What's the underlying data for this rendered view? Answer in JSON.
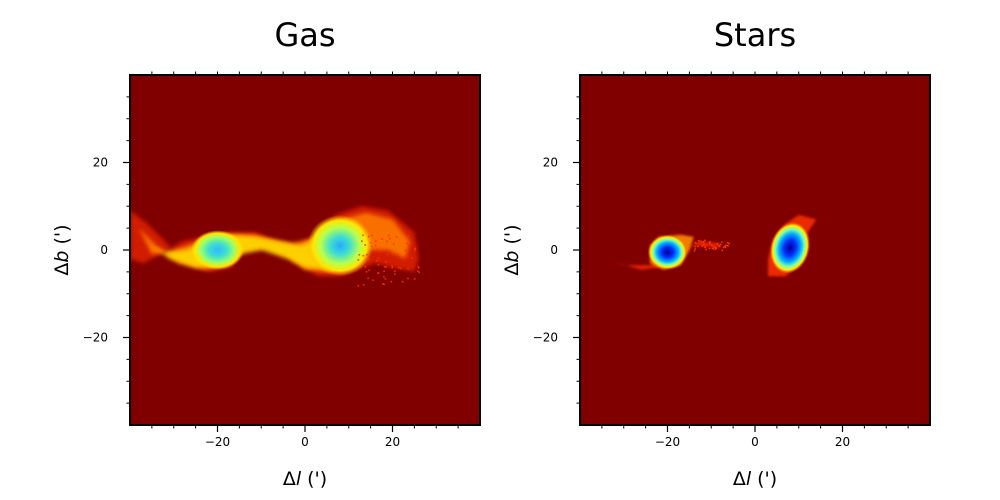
{
  "chart_data": [
    {
      "type": "heatmap",
      "title": "Gas",
      "xlabel_sym": "Δl",
      "xlabel_unit": " (')",
      "ylabel_sym": "Δb",
      "ylabel_unit": " (')",
      "xlim": [
        -40,
        40
      ],
      "ylim": [
        -40,
        40
      ],
      "xticks": [
        -20,
        0,
        20
      ],
      "yticks": [
        20,
        0,
        -20
      ],
      "xtick_labels": [
        "−20",
        "0",
        "20"
      ],
      "ytick_labels": [
        "20",
        "0",
        "−20"
      ],
      "colormap": "jet",
      "background_color": "#800000",
      "features": [
        {
          "kind": "spiral-galaxy",
          "center": [
            -20,
            0
          ],
          "radius": 5
        },
        {
          "kind": "spiral-galaxy",
          "center": [
            8,
            1
          ],
          "radius": 8
        },
        {
          "kind": "tidal-bridge",
          "from": [
            -15,
            2
          ],
          "to": [
            2,
            -3
          ]
        },
        {
          "kind": "tidal-tail",
          "from": [
            -20,
            -4
          ],
          "to": [
            -40,
            8
          ]
        },
        {
          "kind": "tidal-tail",
          "from": [
            12,
            8
          ],
          "to": [
            26,
            -4
          ]
        }
      ]
    },
    {
      "type": "heatmap",
      "title": "Stars",
      "xlabel_sym": "Δl",
      "xlabel_unit": " (')",
      "ylabel_sym": "Δb",
      "ylabel_unit": " (')",
      "xlim": [
        -40,
        40
      ],
      "ylim": [
        -40,
        40
      ],
      "xticks": [
        -20,
        0,
        20
      ],
      "yticks": [
        20,
        0,
        -20
      ],
      "xtick_labels": [
        "−20",
        "0",
        "20"
      ],
      "ytick_labels": [
        "20",
        "0",
        "−20"
      ],
      "colormap": "jet",
      "background_color": "#800000",
      "features": [
        {
          "kind": "compact-core",
          "center": [
            -20,
            0
          ],
          "radius": 3.5
        },
        {
          "kind": "compact-core",
          "center": [
            8,
            1
          ],
          "radius": 4.5
        },
        {
          "kind": "faint-bridge",
          "from": [
            -15,
            2
          ],
          "to": [
            -8,
            1
          ]
        },
        {
          "kind": "faint-tail",
          "from": [
            -20,
            -3
          ],
          "to": [
            -33,
            -3
          ]
        }
      ]
    }
  ]
}
